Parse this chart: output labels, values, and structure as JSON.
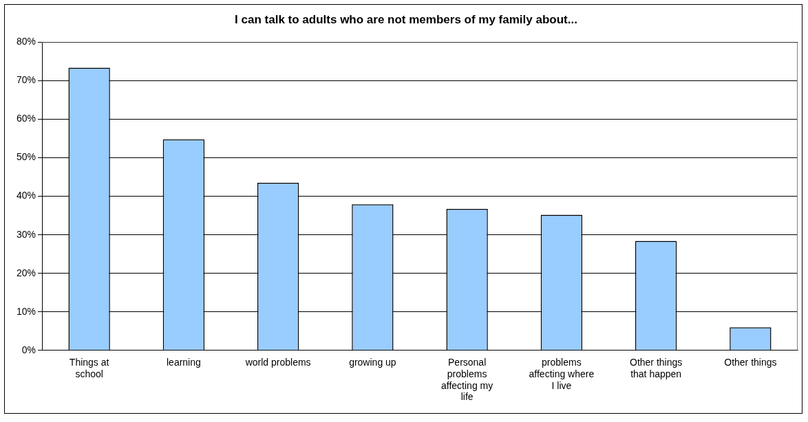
{
  "chart_data": {
    "type": "bar",
    "title": "I can talk to adults who are not members of my family about...",
    "categories": [
      "Things at school",
      "learning",
      "world problems",
      "growing up",
      "Personal problems affecting my life",
      "problems affecting where I live",
      "Other things that happen",
      "Other things"
    ],
    "values": [
      73.4,
      54.8,
      43.5,
      37.9,
      36.7,
      35.2,
      28.4,
      6.0
    ],
    "color": "#99ccff",
    "ylim": [
      0,
      80
    ],
    "yticks": [
      {
        "value": 0,
        "label": "0%"
      },
      {
        "value": 10,
        "label": "10%"
      },
      {
        "value": 20,
        "label": "20%"
      },
      {
        "value": 30,
        "label": "30%"
      },
      {
        "value": 40,
        "label": "40%"
      },
      {
        "value": 50,
        "label": "50%"
      },
      {
        "value": 60,
        "label": "60%"
      },
      {
        "value": 70,
        "label": "70%"
      },
      {
        "value": 80,
        "label": "80%"
      }
    ],
    "grid": "y",
    "legend": false
  }
}
